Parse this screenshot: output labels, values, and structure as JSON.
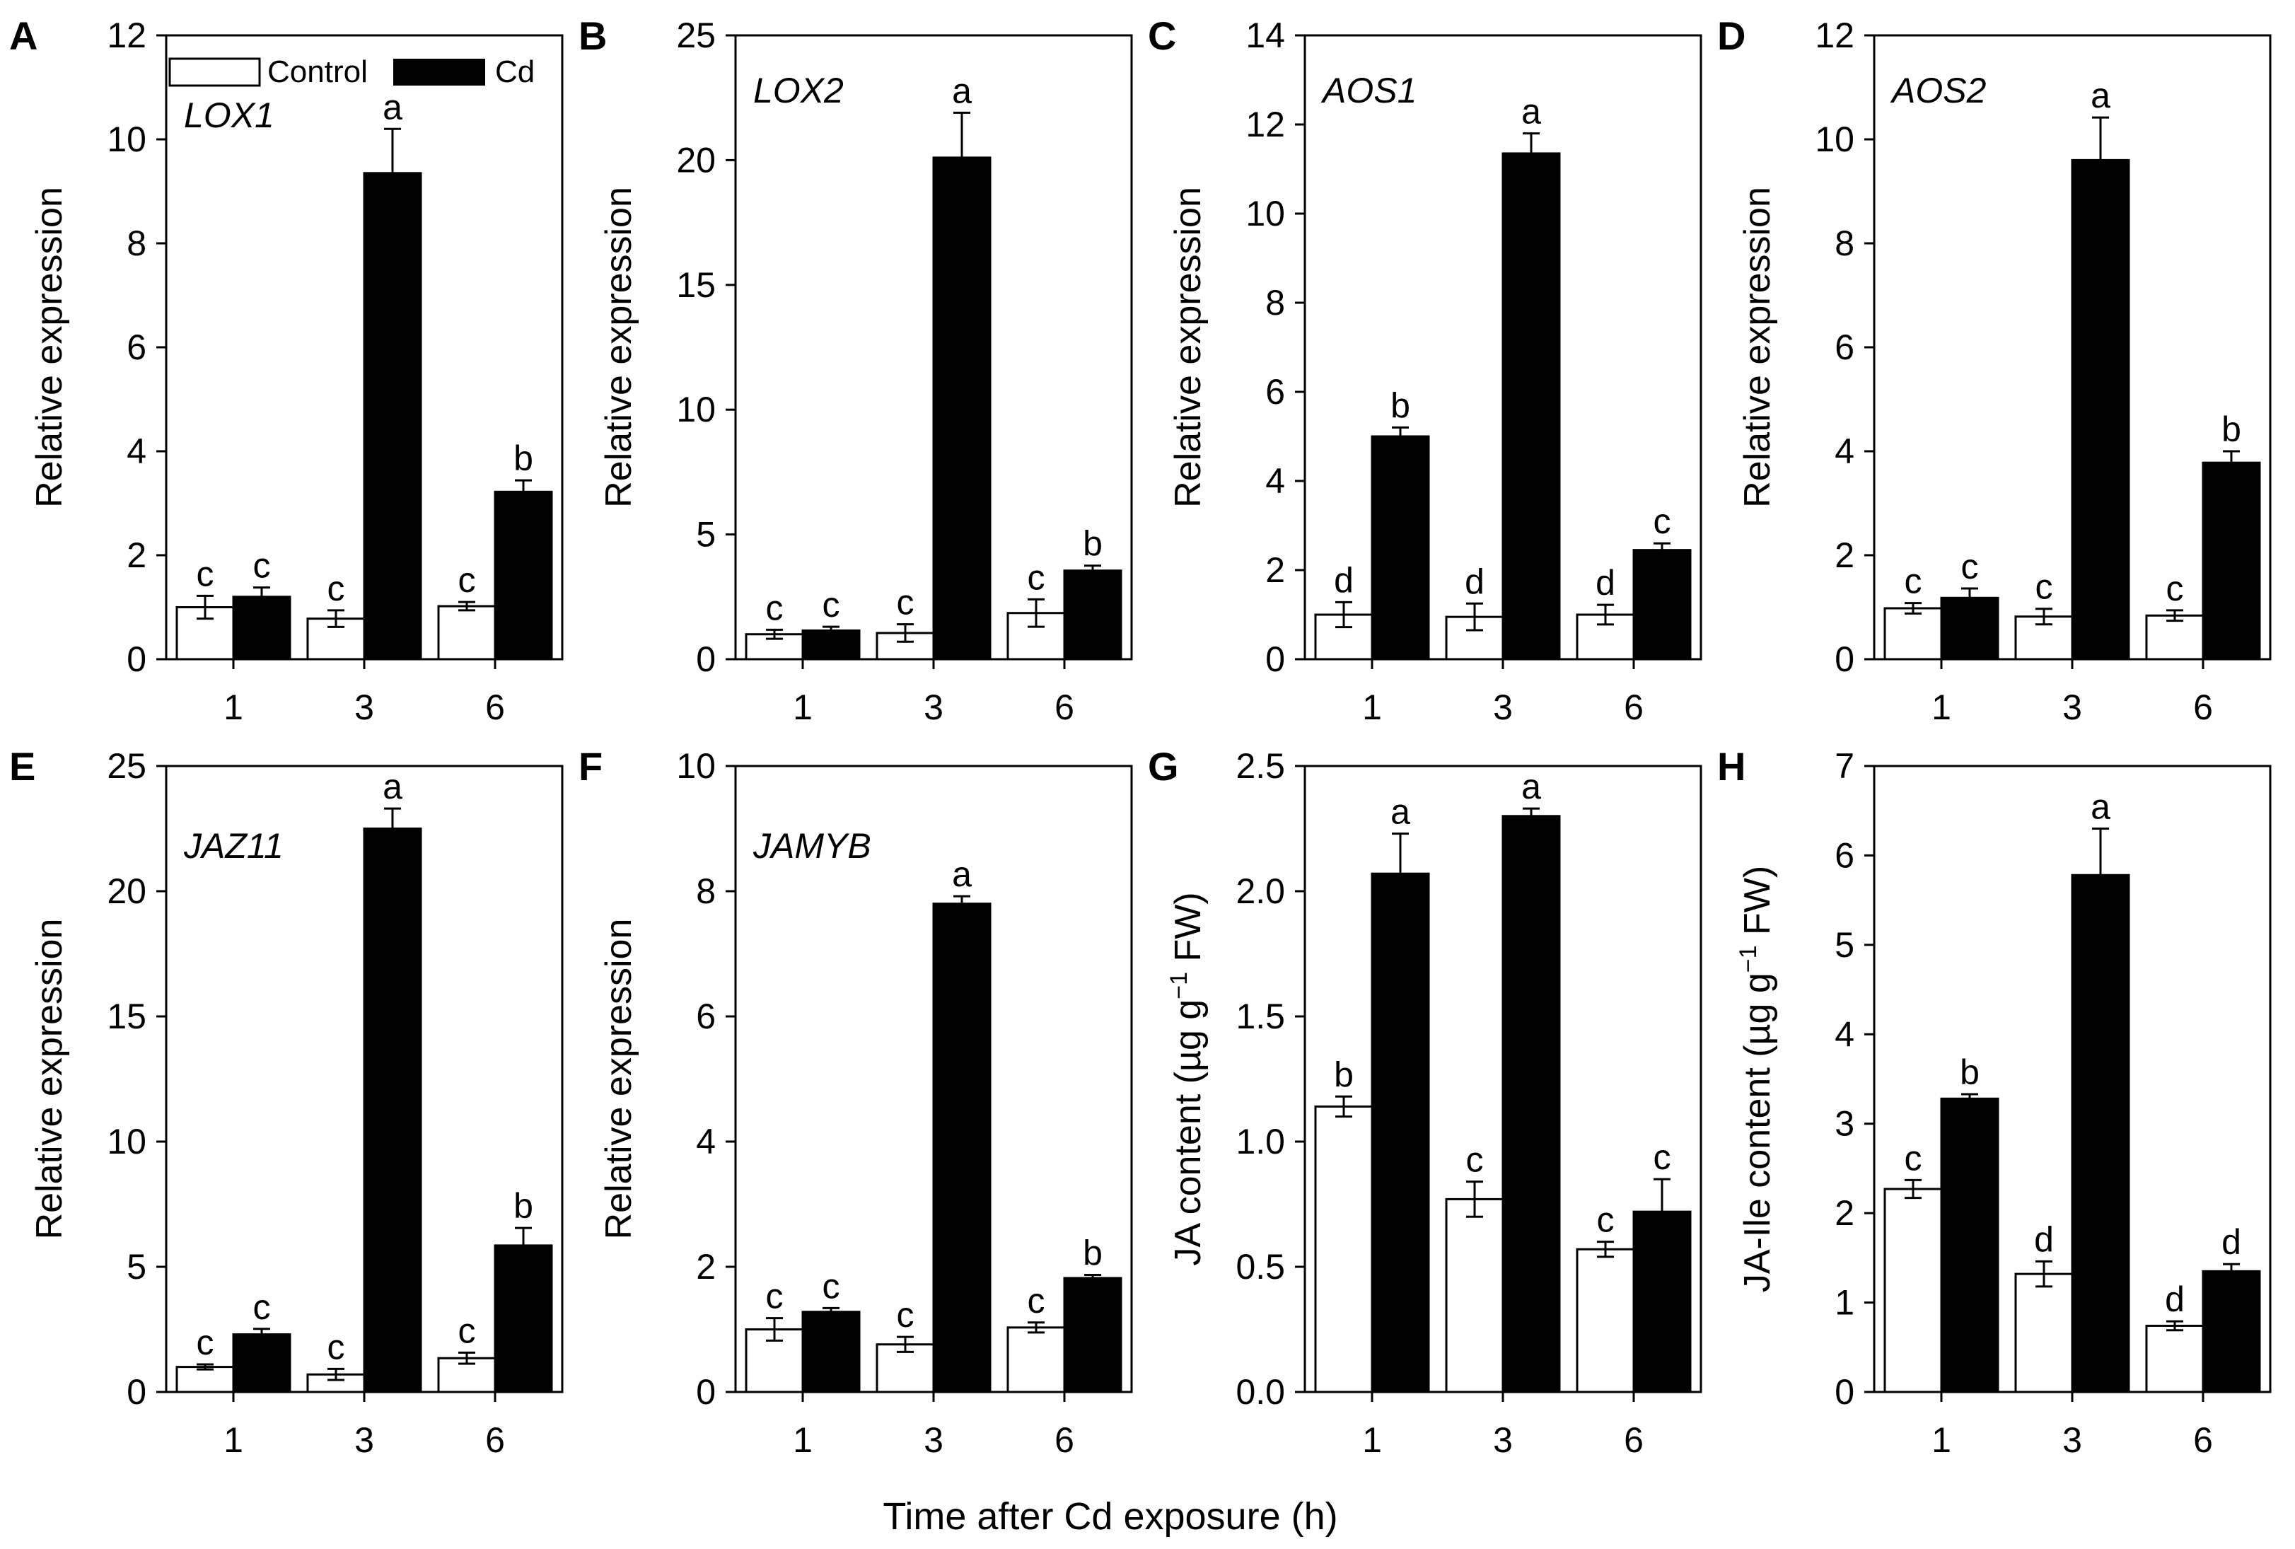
{
  "figure": {
    "x_axis_title": "Time after Cd exposure (h)",
    "legend": [
      {
        "name": "Control",
        "color": "#ffffff"
      },
      {
        "name": "Cd",
        "color": "#000000"
      }
    ]
  },
  "chart_data": [
    {
      "type": "bar",
      "letter": "A",
      "gene": "LOX1",
      "ylabel": "Relative expression",
      "ylim": [
        0,
        12
      ],
      "yticks": [
        "0",
        "2",
        "4",
        "6",
        "8",
        "10",
        "12"
      ],
      "categories": [
        "1",
        "3",
        "6"
      ],
      "series": [
        {
          "name": "Control",
          "values": [
            1.0,
            0.78,
            1.02
          ],
          "errors": [
            0.22,
            0.16,
            0.08
          ],
          "letters": [
            "c",
            "c",
            "c"
          ]
        },
        {
          "name": "Cd",
          "values": [
            1.2,
            9.35,
            3.22
          ],
          "errors": [
            0.18,
            0.85,
            0.22
          ],
          "letters": [
            "c",
            "a",
            "b"
          ]
        }
      ]
    },
    {
      "type": "bar",
      "letter": "B",
      "gene": "LOX2",
      "ylabel": "Relative expression",
      "ylim": [
        0,
        25
      ],
      "yticks": [
        "0",
        "5",
        "10",
        "15",
        "20",
        "25"
      ],
      "categories": [
        "1",
        "3",
        "6"
      ],
      "series": [
        {
          "name": "Control",
          "values": [
            1.0,
            1.05,
            1.85
          ],
          "errors": [
            0.18,
            0.35,
            0.55
          ],
          "letters": [
            "c",
            "c",
            "c"
          ]
        },
        {
          "name": "Cd",
          "values": [
            1.15,
            20.1,
            3.55
          ],
          "errors": [
            0.15,
            1.8,
            0.2
          ],
          "letters": [
            "c",
            "a",
            "b"
          ]
        }
      ]
    },
    {
      "type": "bar",
      "letter": "C",
      "gene": "AOS1",
      "ylabel": "Relative expression",
      "ylim": [
        0,
        14
      ],
      "yticks": [
        "0",
        "2",
        "4",
        "6",
        "8",
        "10",
        "12",
        "14"
      ],
      "categories": [
        "1",
        "3",
        "6"
      ],
      "series": [
        {
          "name": "Control",
          "values": [
            1.0,
            0.95,
            1.0
          ],
          "errors": [
            0.28,
            0.3,
            0.22
          ],
          "letters": [
            "d",
            "d",
            "d"
          ]
        },
        {
          "name": "Cd",
          "values": [
            5.0,
            11.35,
            2.45
          ],
          "errors": [
            0.2,
            0.45,
            0.15
          ],
          "letters": [
            "b",
            "a",
            "c"
          ]
        }
      ]
    },
    {
      "type": "bar",
      "letter": "D",
      "gene": "AOS2",
      "ylabel": "Relative expression",
      "ylim": [
        0,
        12
      ],
      "yticks": [
        "0",
        "2",
        "4",
        "6",
        "8",
        "10",
        "12"
      ],
      "categories": [
        "1",
        "3",
        "6"
      ],
      "series": [
        {
          "name": "Control",
          "values": [
            0.98,
            0.82,
            0.84
          ],
          "errors": [
            0.1,
            0.15,
            0.1
          ],
          "letters": [
            "c",
            "c",
            "c"
          ]
        },
        {
          "name": "Cd",
          "values": [
            1.18,
            9.6,
            3.78
          ],
          "errors": [
            0.18,
            0.82,
            0.22
          ],
          "letters": [
            "c",
            "a",
            "b"
          ]
        }
      ]
    },
    {
      "type": "bar",
      "letter": "E",
      "gene": "JAZ11",
      "ylabel": "Relative expression",
      "ylim": [
        0,
        25
      ],
      "yticks": [
        "0",
        "5",
        "10",
        "15",
        "20",
        "25"
      ],
      "categories": [
        "1",
        "3",
        "6"
      ],
      "series": [
        {
          "name": "Control",
          "values": [
            1.0,
            0.7,
            1.35
          ],
          "errors": [
            0.1,
            0.22,
            0.22
          ],
          "letters": [
            "c",
            "c",
            "c"
          ]
        },
        {
          "name": "Cd",
          "values": [
            2.3,
            22.5,
            5.85
          ],
          "errors": [
            0.22,
            0.8,
            0.7
          ],
          "letters": [
            "c",
            "a",
            "b"
          ]
        }
      ]
    },
    {
      "type": "bar",
      "letter": "F",
      "gene": "JAMYB",
      "ylabel": "Relative expression",
      "ylim": [
        0,
        10
      ],
      "yticks": [
        "0",
        "2",
        "4",
        "6",
        "8",
        "10"
      ],
      "categories": [
        "1",
        "3",
        "6"
      ],
      "series": [
        {
          "name": "Control",
          "values": [
            1.0,
            0.76,
            1.03
          ],
          "errors": [
            0.18,
            0.12,
            0.08
          ],
          "letters": [
            "c",
            "c",
            "c"
          ]
        },
        {
          "name": "Cd",
          "values": [
            1.28,
            7.8,
            1.82
          ],
          "errors": [
            0.06,
            0.12,
            0.05
          ],
          "letters": [
            "c",
            "a",
            "b"
          ]
        }
      ]
    },
    {
      "type": "bar",
      "letter": "G",
      "gene": "",
      "ylabel_prefix": "JA content (",
      "ylabel_unit": "µg g",
      "ylabel_exp": "−1",
      "ylabel_suffix": " FW)",
      "ylim": [
        0,
        2.5
      ],
      "yticks": [
        "0.0",
        "0.5",
        "1.0",
        "1.5",
        "2.0",
        "2.5"
      ],
      "categories": [
        "1",
        "3",
        "6"
      ],
      "series": [
        {
          "name": "Control",
          "values": [
            1.14,
            0.77,
            0.57
          ],
          "errors": [
            0.04,
            0.07,
            0.03
          ],
          "letters": [
            "b",
            "c",
            "c"
          ]
        },
        {
          "name": "Cd",
          "values": [
            2.07,
            2.3,
            0.72
          ],
          "errors": [
            0.16,
            0.03,
            0.13
          ],
          "letters": [
            "a",
            "a",
            "c"
          ]
        }
      ]
    },
    {
      "type": "bar",
      "letter": "H",
      "gene": "",
      "ylabel_prefix": "JA-Ile content (",
      "ylabel_unit": "µg g",
      "ylabel_exp": "−1",
      "ylabel_suffix": " FW)",
      "ylim": [
        0,
        7
      ],
      "yticks": [
        "0",
        "1",
        "2",
        "3",
        "4",
        "5",
        "6",
        "7"
      ],
      "categories": [
        "1",
        "3",
        "6"
      ],
      "series": [
        {
          "name": "Control",
          "values": [
            2.27,
            1.32,
            0.74
          ],
          "errors": [
            0.1,
            0.14,
            0.05
          ],
          "letters": [
            "c",
            "d",
            "d"
          ]
        },
        {
          "name": "Cd",
          "values": [
            3.28,
            5.78,
            1.35
          ],
          "errors": [
            0.05,
            0.52,
            0.08
          ],
          "letters": [
            "b",
            "a",
            "d"
          ]
        }
      ]
    }
  ]
}
